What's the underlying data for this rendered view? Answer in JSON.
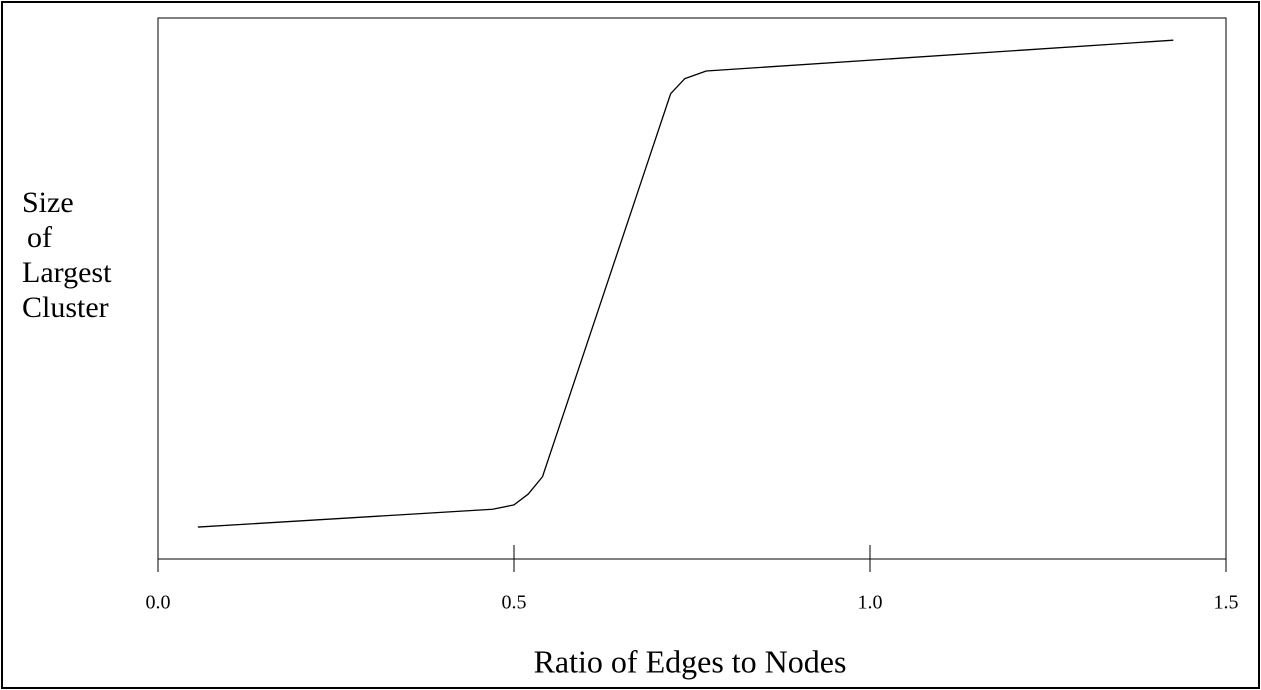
{
  "chart_data": {
    "type": "line",
    "xlabel": "Ratio of Edges to Nodes",
    "ylabel": [
      "Size",
      "of",
      "Largest",
      "Cluster"
    ],
    "x": [
      0.056,
      0.47,
      0.5,
      0.52,
      0.54,
      0.72,
      0.74,
      0.77,
      1.426
    ],
    "series": [
      {
        "color": "#000000",
        "values": [
          0.059,
          0.092,
          0.1,
          0.12,
          0.152,
          0.86,
          0.888,
          0.902,
          0.959
        ]
      }
    ],
    "xlim": [
      0,
      1.5
    ],
    "xticks": [
      {
        "value": 0,
        "label": "0.0"
      },
      0.5,
      {
        "value": 1,
        "label": "1.0"
      },
      1.5
    ],
    "ylim": [
      0,
      1
    ]
  }
}
